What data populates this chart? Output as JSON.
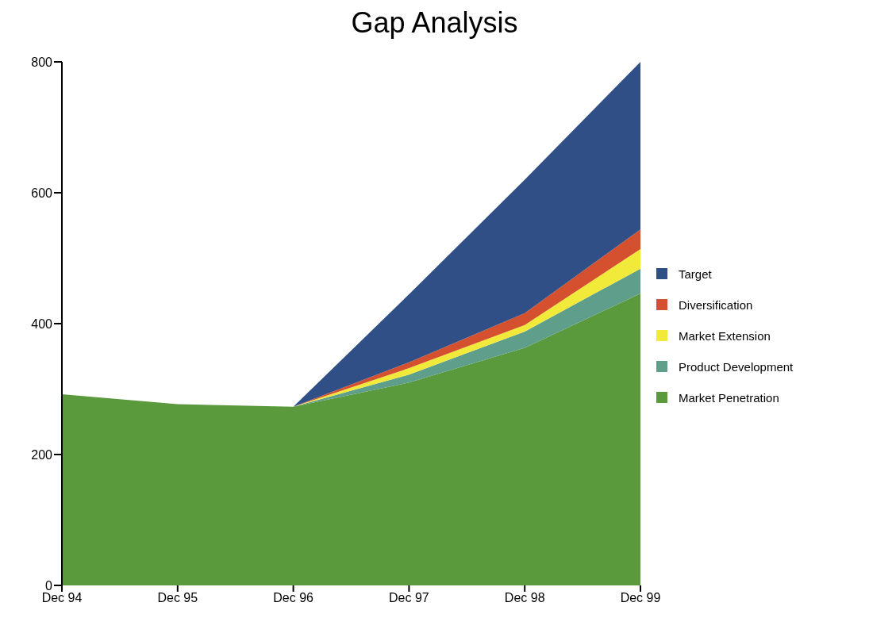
{
  "chart_data": {
    "type": "area",
    "title": "Gap Analysis",
    "stacked": true,
    "categories": [
      "Dec 94",
      "Dec 95",
      "Dec 96",
      "Dec 97",
      "Dec 98",
      "Dec 99"
    ],
    "ylim": [
      0,
      800
    ],
    "yticks": [
      0,
      200,
      400,
      600,
      800
    ],
    "grid": false,
    "legend": "right",
    "series": [
      {
        "name": "Market Penetration",
        "color": "#5a9a3c",
        "values": [
          292,
          277,
          273,
          310,
          363,
          446
        ]
      },
      {
        "name": "Product Development",
        "color": "#5f9e8a",
        "values": [
          0,
          0,
          0,
          12,
          25,
          38
        ]
      },
      {
        "name": "Market Extension",
        "color": "#f2ea3a",
        "values": [
          0,
          0,
          0,
          10,
          10,
          30
        ]
      },
      {
        "name": "Diversification",
        "color": "#d4502e",
        "values": [
          0,
          0,
          0,
          9,
          18,
          30
        ]
      },
      {
        "name": "Target",
        "color": "#2f4f86",
        "values": [
          0,
          0,
          0,
          104,
          204,
          256
        ]
      }
    ]
  }
}
